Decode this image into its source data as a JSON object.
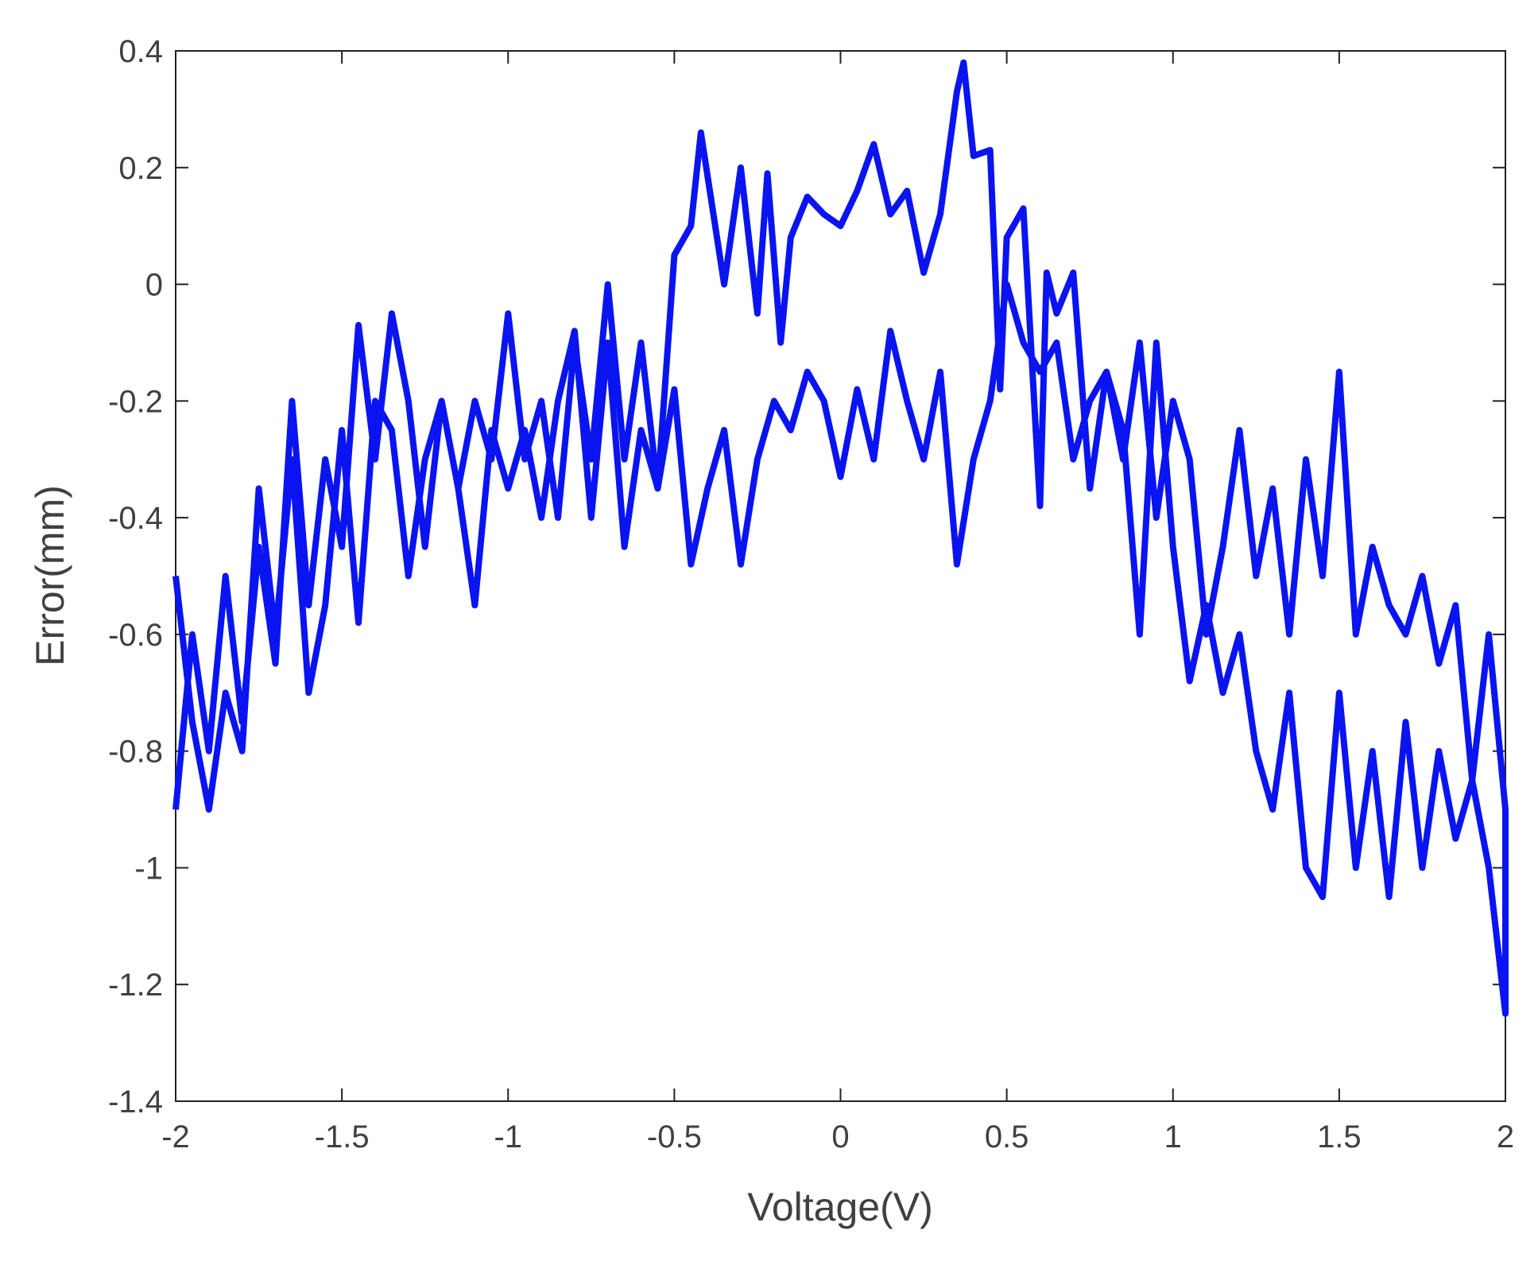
{
  "chart_data": {
    "type": "line",
    "xlabel": "Voltage(V)",
    "ylabel": "Error(mm)",
    "xlim": [
      -2,
      2
    ],
    "ylim": [
      -1.4,
      0.4
    ],
    "xticks": [
      -2,
      -1.5,
      -1,
      -0.5,
      0,
      0.5,
      1,
      1.5,
      2
    ],
    "yticks": [
      0.4,
      0.2,
      0,
      -0.2,
      -0.4,
      -0.6,
      -0.8,
      -1,
      -1.2,
      -1.4
    ],
    "grid": false,
    "x": [
      -2,
      -1.95,
      -1.9,
      -1.85,
      -1.8,
      -1.75,
      -1.7,
      -1.65,
      -1.6,
      -1.55,
      -1.5,
      -1.45,
      -1.4,
      -1.35,
      -1.3,
      -1.25,
      -1.2,
      -1.15,
      -1.1,
      -1.05,
      -1.0,
      -0.95,
      -0.9,
      -0.85,
      -0.8,
      -0.75,
      -0.7,
      -0.65,
      -0.6,
      -0.55,
      -0.5,
      -0.45,
      -0.42,
      -0.35,
      -0.3,
      -0.25,
      -0.22,
      -0.18,
      -0.15,
      -0.1,
      -0.05,
      0,
      0.05,
      0.1,
      0.15,
      0.2,
      0.25,
      0.3,
      0.35,
      0.37,
      0.4,
      0.45,
      0.48,
      0.5,
      0.55,
      0.6,
      0.62,
      0.65,
      0.7,
      0.75,
      0.8,
      0.85,
      0.9,
      0.95,
      1.0,
      1.05,
      1.1,
      1.15,
      1.2,
      1.25,
      1.3,
      1.35,
      1.4,
      1.45,
      1.5,
      1.55,
      1.6,
      1.65,
      1.7,
      1.75,
      1.8,
      1.85,
      1.9,
      1.95,
      2.0,
      2.0,
      1.95,
      1.9,
      1.85,
      1.8,
      1.75,
      1.7,
      1.65,
      1.6,
      1.55,
      1.5,
      1.45,
      1.4,
      1.35,
      1.3,
      1.25,
      1.2,
      1.15,
      1.1,
      1.05,
      1.0,
      0.95,
      0.9,
      0.85,
      0.8,
      0.75,
      0.7,
      0.65,
      0.6,
      0.55,
      0.5,
      0.45,
      0.4,
      0.35,
      0.3,
      0.25,
      0.2,
      0.15,
      0.1,
      0.05,
      0.0,
      -0.05,
      -0.1,
      -0.15,
      -0.2,
      -0.25,
      -0.3,
      -0.35,
      -0.4,
      -0.45,
      -0.5,
      -0.55,
      -0.6,
      -0.65,
      -0.7,
      -0.75,
      -0.8,
      -0.85,
      -0.9,
      -0.95,
      -1.0,
      -1.05,
      -1.1,
      -1.15,
      -1.2,
      -1.25,
      -1.3,
      -1.35,
      -1.4,
      -1.45,
      -1.5,
      -1.55,
      -1.6,
      -1.65,
      -1.7,
      -1.75,
      -1.8,
      -1.85,
      -1.9,
      -1.95,
      -2.0
    ],
    "series": [
      {
        "color": "#0a14f0",
        "values": [
          -0.9,
          -0.6,
          -0.8,
          -0.5,
          -0.75,
          -0.45,
          -0.65,
          -0.2,
          -0.55,
          -0.3,
          -0.45,
          -0.07,
          -0.3,
          -0.05,
          -0.2,
          -0.45,
          -0.2,
          -0.35,
          -0.2,
          -0.3,
          -0.05,
          -0.3,
          -0.2,
          -0.4,
          -0.1,
          -0.3,
          0.0,
          -0.3,
          -0.1,
          -0.35,
          0.05,
          0.1,
          0.26,
          0.0,
          0.2,
          -0.05,
          0.19,
          -0.1,
          0.08,
          0.15,
          0.12,
          0.1,
          0.16,
          0.24,
          0.12,
          0.16,
          0.02,
          0.12,
          0.33,
          0.38,
          0.22,
          0.23,
          -0.18,
          0.08,
          0.13,
          -0.38,
          0.02,
          -0.05,
          0.02,
          -0.35,
          -0.15,
          -0.25,
          -0.6,
          -0.1,
          -0.45,
          -0.68,
          -0.55,
          -0.7,
          -0.6,
          -0.8,
          -0.9,
          -0.7,
          -1.0,
          -1.05,
          -0.7,
          -1.0,
          -0.8,
          -1.05,
          -0.75,
          -1.0,
          -0.8,
          -0.95,
          -0.85,
          -1.0,
          -1.25,
          -0.9,
          -0.6,
          -0.85,
          -0.55,
          -0.65,
          -0.5,
          -0.6,
          -0.55,
          -0.45,
          -0.6,
          -0.15,
          -0.5,
          -0.3,
          -0.6,
          -0.35,
          -0.5,
          -0.25,
          -0.45,
          -0.6,
          -0.3,
          -0.2,
          -0.4,
          -0.1,
          -0.3,
          -0.15,
          -0.2,
          -0.3,
          -0.1,
          -0.15,
          -0.1,
          0.0,
          -0.2,
          -0.3,
          -0.48,
          -0.15,
          -0.3,
          -0.2,
          -0.08,
          -0.3,
          -0.18,
          -0.33,
          -0.2,
          -0.15,
          -0.25,
          -0.2,
          -0.3,
          -0.48,
          -0.25,
          -0.35,
          -0.48,
          -0.18,
          -0.35,
          -0.25,
          -0.45,
          -0.1,
          -0.4,
          -0.08,
          -0.2,
          -0.4,
          -0.25,
          -0.35,
          -0.25,
          -0.55,
          -0.35,
          -0.2,
          -0.3,
          -0.5,
          -0.25,
          -0.2,
          -0.58,
          -0.25,
          -0.55,
          -0.7,
          -0.3,
          -0.6,
          -0.35,
          -0.8,
          -0.7,
          -0.9,
          -0.75,
          -0.5
        ]
      }
    ]
  }
}
